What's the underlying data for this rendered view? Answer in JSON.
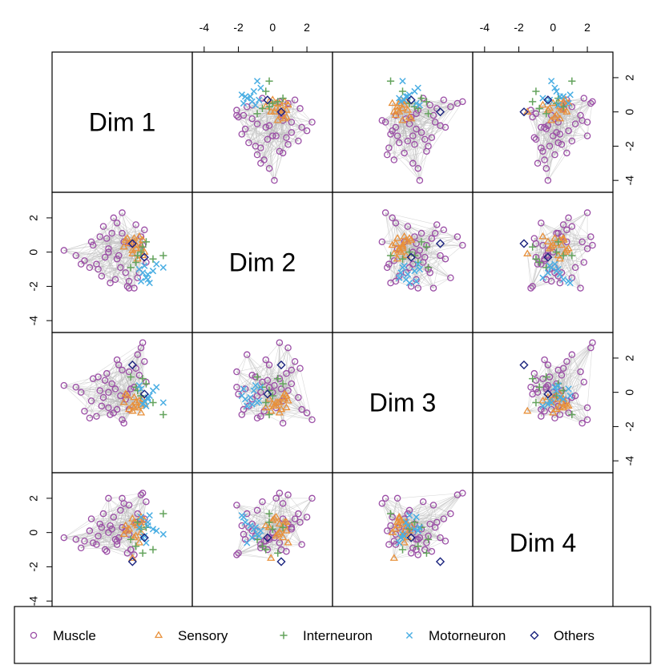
{
  "chart_data": {
    "type": "scatter",
    "subtype": "pairs",
    "dimensions": [
      "Dim 1",
      "Dim 2",
      "Dim 3",
      "Dim 4"
    ],
    "axis": {
      "range": [
        -4.6,
        3.4
      ],
      "ticks": [
        -4,
        -2,
        0,
        2
      ]
    },
    "edges_color": "#b8b8b8",
    "categories": [
      {
        "name": "Muscle",
        "color": "#9b4ea6",
        "marker": "circle"
      },
      {
        "name": "Sensory",
        "color": "#e8903a",
        "marker": "triangle"
      },
      {
        "name": "Interneuron",
        "color": "#63a35c",
        "marker": "plus"
      },
      {
        "name": "Motorneuron",
        "color": "#4aaee3",
        "marker": "cross"
      },
      {
        "name": "Others",
        "color": "#1a237e",
        "marker": "diamond"
      }
    ],
    "points": {
      "Muscle": [
        [
          -0.6,
          2.3,
          -1.6,
          2.0
        ],
        [
          -1.4,
          0.2,
          -0.9,
          2.0
        ],
        [
          -2.1,
          -0.7,
          -1.4,
          -0.7
        ],
        [
          -4.0,
          0.1,
          0.4,
          -0.3
        ],
        [
          -1.0,
          -1.6,
          0.2,
          -0.4
        ],
        [
          -1.9,
          0.9,
          0.1,
          0.5
        ],
        [
          -2.5,
          -0.9,
          -1.5,
          0.1
        ],
        [
          -0.3,
          -2.0,
          -0.1,
          -1.2
        ],
        [
          0.4,
          -1.2,
          1.0,
          0.5
        ],
        [
          0.6,
          0.4,
          2.9,
          2.3
        ],
        [
          -0.9,
          1.7,
          -1.0,
          -0.7
        ],
        [
          -1.6,
          -0.3,
          0.7,
          -1.0
        ],
        [
          -0.2,
          -2.1,
          1.2,
          1.6
        ],
        [
          0.3,
          -1.5,
          2.2,
          1.1
        ],
        [
          -2.8,
          -0.5,
          -1.1,
          -0.5
        ],
        [
          -1.2,
          1.1,
          0.5,
          0.2
        ],
        [
          -3.0,
          -0.7,
          0.0,
          -0.9
        ],
        [
          0.7,
          1.3,
          1.8,
          0.8
        ],
        [
          -0.5,
          0.6,
          -1.8,
          1.7
        ],
        [
          -1.8,
          -1.4,
          -0.8,
          0.3
        ],
        [
          -0.8,
          -0.2,
          1.6,
          -0.3
        ],
        [
          0.1,
          -2.1,
          0.3,
          -1.3
        ],
        [
          -2.3,
          0.4,
          0.8,
          -0.6
        ],
        [
          -1.1,
          2.0,
          -1.2,
          0.9
        ],
        [
          0.5,
          0.9,
          2.6,
          2.2
        ],
        [
          -0.4,
          -1.2,
          -0.4,
          0.1
        ],
        [
          -1.5,
          0.8,
          1.1,
          -1.1
        ],
        [
          -0.7,
          -0.9,
          -0.2,
          1.3
        ],
        [
          -2.0,
          -1.0,
          0.9,
          -0.2
        ],
        [
          0.2,
          1.6,
          1.4,
          0.6
        ],
        [
          -1.3,
          -1.8,
          -1.3,
          0.4
        ],
        [
          -0.1,
          0.5,
          0.2,
          -1.0
        ],
        [
          -2.4,
          0.6,
          -0.5,
          0.8
        ],
        [
          -0.9,
          -0.4,
          1.9,
          -0.5
        ],
        [
          -1.7,
          1.5,
          -0.3,
          1.1
        ],
        [
          0.8,
          -0.6,
          0.6,
          1.8
        ],
        [
          -0.2,
          -1.7,
          -1.0,
          -0.1
        ],
        [
          -1.4,
          0.0,
          0.0,
          0.0
        ],
        [
          -3.3,
          -0.2,
          0.3,
          -0.4
        ],
        [
          -0.6,
          1.1,
          1.3,
          0.3
        ]
      ],
      "Sensory": [
        [
          0.2,
          0.4,
          -0.6,
          0.5
        ],
        [
          -0.3,
          0.8,
          -0.2,
          0.1
        ],
        [
          0.5,
          0.2,
          -0.8,
          0.9
        ],
        [
          0.0,
          -0.1,
          -1.1,
          -1.5
        ],
        [
          0.6,
          0.7,
          -0.4,
          0.6
        ],
        [
          -0.5,
          0.3,
          -0.6,
          -0.1
        ],
        [
          0.3,
          -0.4,
          -0.9,
          0.4
        ],
        [
          0.1,
          0.6,
          -0.3,
          -0.3
        ],
        [
          0.7,
          0.0,
          -0.7,
          0.7
        ],
        [
          -0.2,
          0.5,
          -1.0,
          0.2
        ],
        [
          0.4,
          0.9,
          -0.5,
          -0.6
        ],
        [
          0.0,
          0.1,
          -0.8,
          0.8
        ],
        [
          0.5,
          0.4,
          -1.2,
          0.0
        ],
        [
          -0.4,
          0.7,
          -0.1,
          0.4
        ],
        [
          0.2,
          0.2,
          -0.6,
          -0.2
        ],
        [
          0.6,
          -0.2,
          -0.4,
          0.3
        ],
        [
          0.1,
          0.8,
          -0.9,
          0.6
        ]
      ],
      "Interneuron": [
        [
          1.8,
          -0.2,
          -1.3,
          1.1
        ],
        [
          0.6,
          0.3,
          0.8,
          -1.2
        ],
        [
          0.2,
          -0.6,
          0.3,
          -0.8
        ],
        [
          0.5,
          0.0,
          -0.2,
          0.2
        ],
        [
          -0.1,
          -0.9,
          0.9,
          -0.4
        ],
        [
          0.8,
          0.6,
          0.5,
          0.3
        ],
        [
          1.2,
          -0.4,
          -0.6,
          -1.0
        ],
        [
          0.3,
          -0.2,
          0.1,
          0.6
        ]
      ],
      "Motorneuron": [
        [
          1.8,
          -0.9,
          -0.6,
          -0.1
        ],
        [
          0.9,
          -1.3,
          -0.3,
          0.4
        ],
        [
          0.5,
          -1.7,
          0.2,
          0.9
        ],
        [
          0.7,
          -0.8,
          -0.5,
          -0.2
        ],
        [
          1.2,
          -1.1,
          0.1,
          0.2
        ],
        [
          0.8,
          -1.5,
          -0.8,
          -0.6
        ],
        [
          0.4,
          -1.0,
          0.4,
          0.3
        ],
        [
          1.0,
          -1.8,
          -0.2,
          1.0
        ],
        [
          0.6,
          -1.2,
          -0.7,
          -0.3
        ],
        [
          1.4,
          -0.7,
          0.3,
          0.1
        ],
        [
          0.9,
          -1.6,
          -0.4,
          0.6
        ]
      ],
      "Others": [
        [
          0.7,
          -0.3,
          -0.1,
          -0.3
        ],
        [
          0.0,
          0.5,
          1.6,
          -1.7
        ]
      ]
    }
  },
  "legend": {
    "items": [
      "Muscle",
      "Sensory",
      "Interneuron",
      "Motorneuron",
      "Others"
    ]
  }
}
